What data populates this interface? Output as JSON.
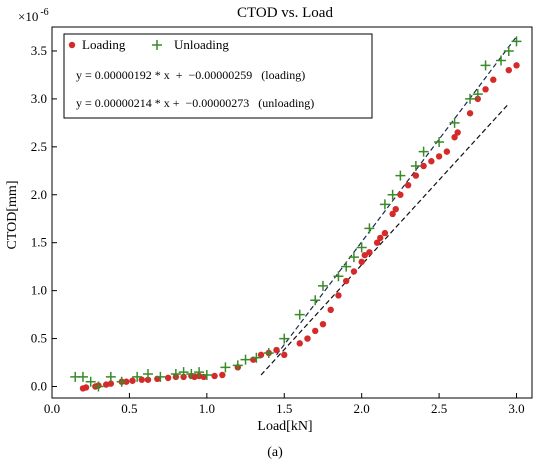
{
  "chart_data": {
    "type": "scatter",
    "title": "CTOD vs. Load",
    "xlabel": "Load[kN]",
    "ylabel": "CTOD[mm]",
    "scale_label": "×10",
    "scale_exponent": "-6",
    "xlim": [
      0.0,
      3.1
    ],
    "ylim": [
      -0.12,
      3.75
    ],
    "xticks": [
      "0.0",
      "0.5",
      "1.0",
      "1.5",
      "2.0",
      "2.5",
      "3.0"
    ],
    "yticks": [
      "0.0",
      "0.5",
      "1.0",
      "1.5",
      "2.0",
      "2.5",
      "3.0",
      "3.5"
    ],
    "grid": false,
    "legend_position": "top-left",
    "legend": [
      {
        "label": "Loading",
        "marker": "dot",
        "color": "#d42a2a"
      },
      {
        "label": "Unloading",
        "marker": "plus",
        "color": "#3a8a2a"
      }
    ],
    "equations": [
      "y = 0.00000192 * x  +  −0.00000259   (loading)",
      "y = 0.00000214 * x +  −0.00000273   (unloading)"
    ],
    "series": [
      {
        "name": "Loading",
        "marker": "dot",
        "color": "#d42a2a",
        "x": [
          0.2,
          0.22,
          0.28,
          0.3,
          0.35,
          0.38,
          0.45,
          0.48,
          0.52,
          0.58,
          0.62,
          0.68,
          0.75,
          0.8,
          0.85,
          0.9,
          0.92,
          0.95,
          0.98,
          1.05,
          1.1,
          1.2,
          1.3,
          1.35,
          1.4,
          1.45,
          1.5,
          1.6,
          1.65,
          1.7,
          1.75,
          1.8,
          1.85,
          1.9,
          1.95,
          2.0,
          2.02,
          2.05,
          2.1,
          2.12,
          2.15,
          2.2,
          2.22,
          2.25,
          2.3,
          2.35,
          2.4,
          2.45,
          2.5,
          2.55,
          2.6,
          2.62,
          2.7,
          2.75,
          2.8,
          2.85,
          2.95,
          3.0
        ],
        "y": [
          -0.02,
          -0.01,
          0.0,
          0.01,
          0.02,
          0.03,
          0.05,
          0.05,
          0.06,
          0.07,
          0.07,
          0.08,
          0.09,
          0.1,
          0.1,
          0.11,
          0.1,
          0.11,
          0.1,
          0.11,
          0.12,
          0.2,
          0.28,
          0.33,
          0.35,
          0.38,
          0.33,
          0.45,
          0.5,
          0.58,
          0.65,
          0.8,
          0.95,
          1.1,
          1.2,
          1.3,
          1.37,
          1.4,
          1.5,
          1.55,
          1.6,
          1.8,
          1.85,
          2.0,
          2.1,
          2.2,
          2.3,
          2.35,
          2.4,
          2.45,
          2.6,
          2.65,
          2.85,
          3.0,
          3.1,
          3.2,
          3.3,
          3.35
        ]
      },
      {
        "name": "Unloading",
        "marker": "plus",
        "color": "#3a8a2a",
        "x": [
          0.15,
          0.2,
          0.25,
          0.3,
          0.38,
          0.45,
          0.55,
          0.62,
          0.7,
          0.8,
          0.85,
          0.9,
          0.95,
          1.0,
          1.12,
          1.2,
          1.25,
          1.32,
          1.4,
          1.5,
          1.6,
          1.7,
          1.75,
          1.85,
          1.9,
          1.95,
          2.0,
          2.05,
          2.15,
          2.2,
          2.25,
          2.35,
          2.4,
          2.5,
          2.6,
          2.7,
          2.75,
          2.8,
          2.9,
          2.95,
          3.0
        ],
        "y": [
          0.1,
          0.1,
          0.05,
          0.0,
          0.1,
          0.05,
          0.1,
          0.13,
          0.1,
          0.13,
          0.15,
          0.13,
          0.15,
          0.12,
          0.2,
          0.22,
          0.28,
          0.3,
          0.35,
          0.5,
          0.75,
          0.9,
          1.05,
          1.15,
          1.25,
          1.35,
          1.45,
          1.65,
          1.9,
          2.0,
          2.2,
          2.3,
          2.45,
          2.55,
          2.75,
          3.0,
          3.05,
          3.35,
          3.4,
          3.5,
          3.6
        ]
      }
    ],
    "fit_lines": [
      {
        "name": "loading fit",
        "x": [
          1.35,
          2.95
        ],
        "y": [
          0.12,
          2.95
        ]
      },
      {
        "name": "unloading fit",
        "x": [
          1.45,
          3.0
        ],
        "y": [
          0.33,
          3.65
        ]
      }
    ]
  },
  "caption": "(a)"
}
